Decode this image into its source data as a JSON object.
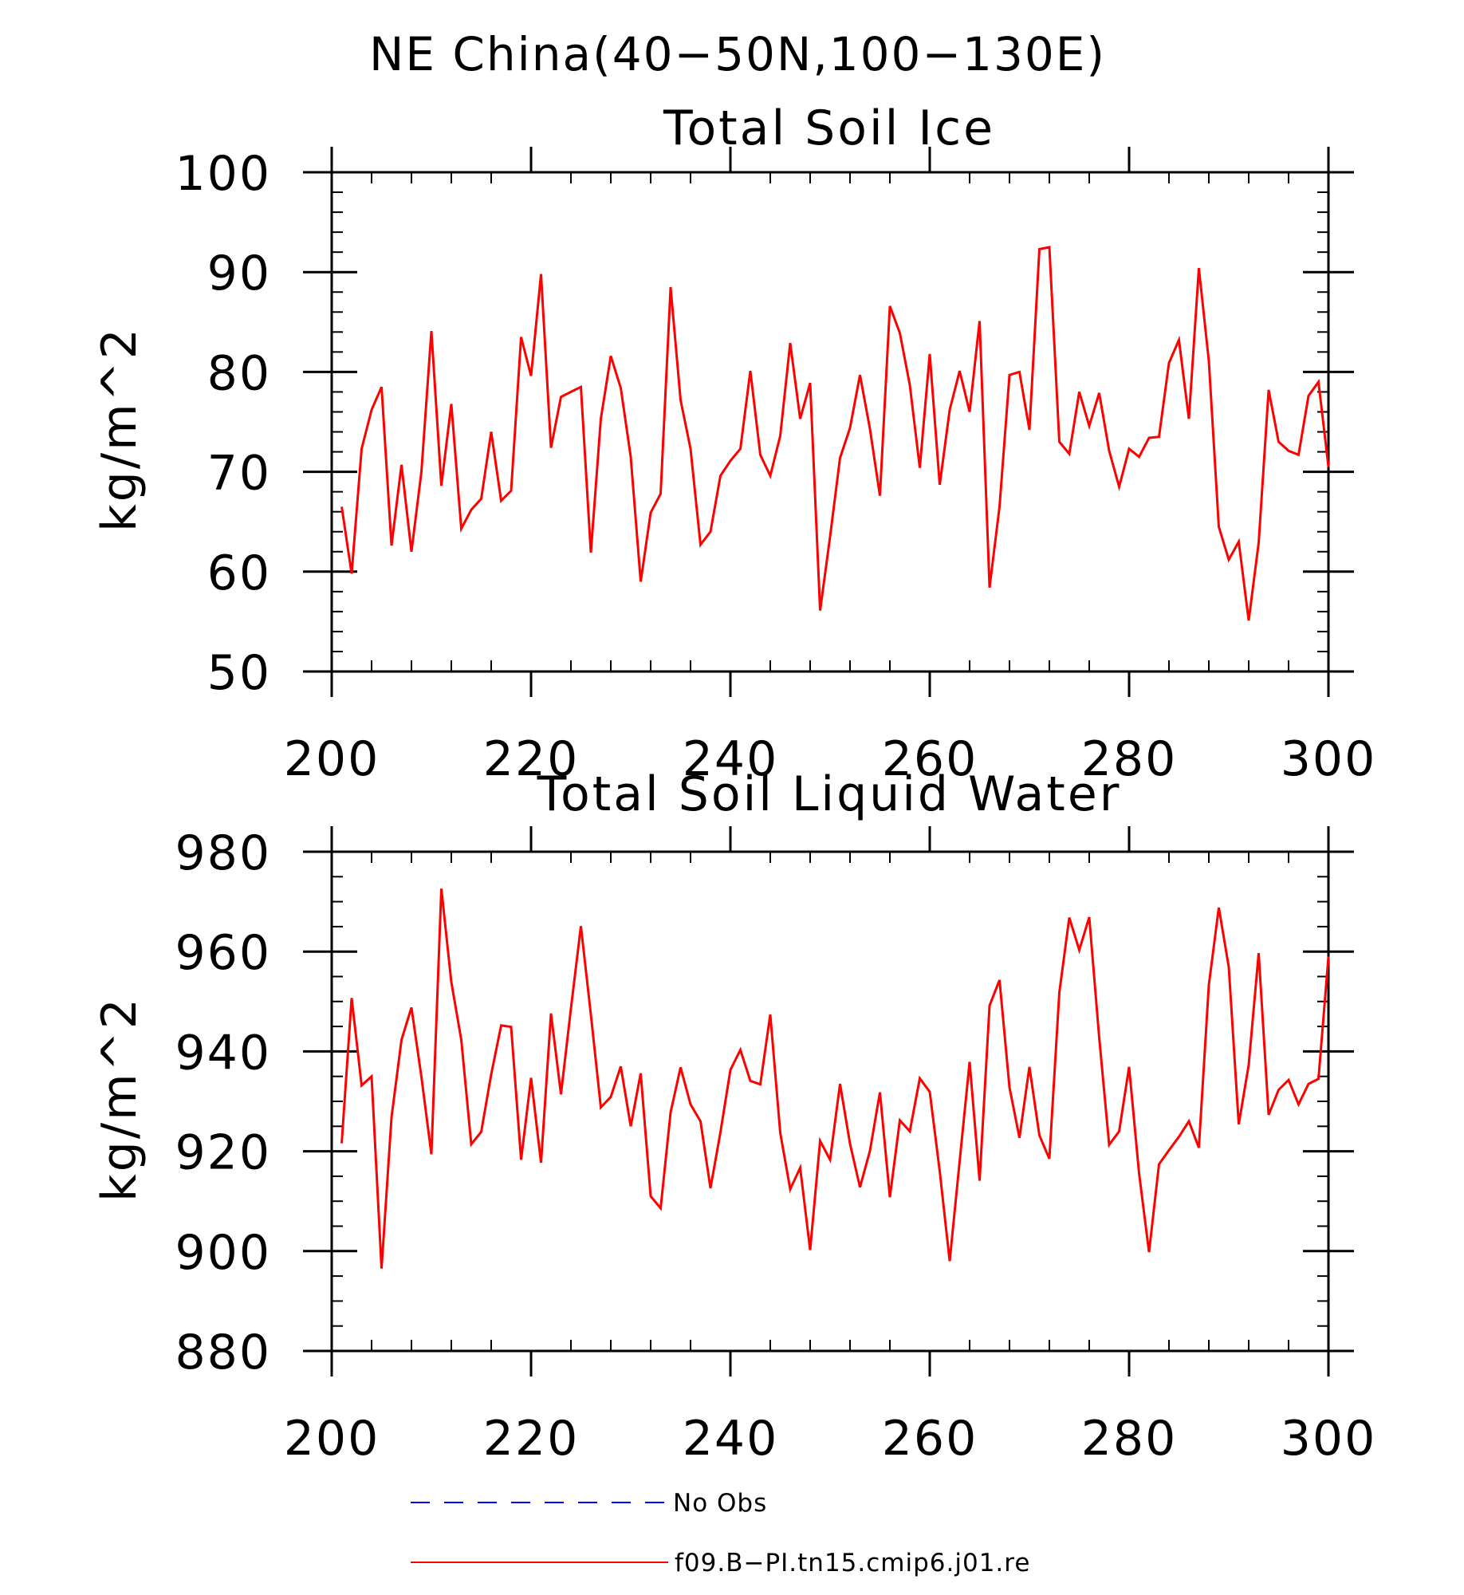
{
  "page_title": "NE China(40−50N,100−130E)",
  "colors": {
    "model": "#ff0000",
    "obs": "#0000ff",
    "axis": "#000000"
  },
  "legend": [
    {
      "label": "No Obs",
      "style": "dashed",
      "color": "#0000ff"
    },
    {
      "label": "f09.B−PI.tn15.cmip6.j01.re",
      "style": "solid",
      "color": "#ff0000"
    }
  ],
  "chart_data": [
    {
      "type": "line",
      "title": "Total Soil Ice",
      "xlabel": "",
      "ylabel": "kg/m^2",
      "xlim": [
        200,
        300
      ],
      "ylim": [
        50,
        100
      ],
      "x_ticks": [
        200,
        220,
        240,
        260,
        280,
        300
      ],
      "y_ticks": [
        50,
        60,
        70,
        80,
        90,
        100
      ],
      "x_minor_step": 4,
      "y_minor_step": 2,
      "grid": false,
      "series": [
        {
          "x_start": 201,
          "x_step": 1,
          "values": [
            66.5,
            59.8,
            72.3,
            76.2,
            78.5,
            62.6,
            70.7,
            62.0,
            70.0,
            84.1,
            68.6,
            76.8,
            64.3,
            66.2,
            67.3,
            74.0,
            67.1,
            68.1,
            83.5,
            79.6,
            89.8,
            72.4,
            77.5,
            78.0,
            78.5,
            61.9,
            75.3,
            81.6,
            78.4,
            71.5,
            59.0,
            65.9,
            67.8,
            88.5,
            77.2,
            72.3,
            62.7,
            64.0,
            69.6,
            71.1,
            72.3,
            80.1,
            71.7,
            69.6,
            73.6,
            82.9,
            75.3,
            78.9,
            56.1,
            63.5,
            71.4,
            74.4,
            79.7,
            74.3,
            67.6,
            86.6,
            83.9,
            78.7,
            70.4,
            81.8,
            68.7,
            76.2,
            80.1,
            76.0,
            85.1,
            58.4,
            66.5,
            79.7,
            80.0,
            74.2,
            92.3,
            92.5,
            73.0,
            71.8,
            78.0,
            74.6,
            77.9,
            72.1,
            68.5,
            72.3,
            71.5,
            73.4,
            73.5,
            80.9,
            83.2,
            75.3,
            90.4,
            81.1,
            64.5,
            61.2,
            63.0,
            55.1,
            62.9,
            78.2,
            73.0,
            72.1,
            71.7,
            77.6,
            79.0,
            70.5
          ]
        }
      ]
    },
    {
      "type": "line",
      "title": "Total Soil Liquid Water",
      "xlabel": "",
      "ylabel": "kg/m^2",
      "xlim": [
        200,
        300
      ],
      "ylim": [
        880,
        980
      ],
      "x_ticks": [
        200,
        220,
        240,
        260,
        280,
        300
      ],
      "y_ticks": [
        880,
        900,
        920,
        940,
        960,
        980
      ],
      "x_minor_step": 4,
      "y_minor_step": 5,
      "grid": false,
      "series": [
        {
          "x_start": 201,
          "x_step": 1,
          "values": [
            921.6,
            950.7,
            933.2,
            935.0,
            896.5,
            926.8,
            942.3,
            948.8,
            934.9,
            919.4,
            972.6,
            953.9,
            942.3,
            921.4,
            923.9,
            935.4,
            945.2,
            944.9,
            918.3,
            934.7,
            917.7,
            947.6,
            931.4,
            948.6,
            965.1,
            947.4,
            928.8,
            930.9,
            937.0,
            925.0,
            935.6,
            911.0,
            908.6,
            927.8,
            936.8,
            929.4,
            926.0,
            912.6,
            923.8,
            936.3,
            940.3,
            934.1,
            933.4,
            947.4,
            923.7,
            912.4,
            916.7,
            900.2,
            922.1,
            918.3,
            933.5,
            921.5,
            912.8,
            920.1,
            931.8,
            910.8,
            926.2,
            924.0,
            934.6,
            931.9,
            916.0,
            898.0,
            918.0,
            937.9,
            914.1,
            949.2,
            954.3,
            932.8,
            922.7,
            936.9,
            923.2,
            918.5,
            951.8,
            966.8,
            960.3,
            966.9,
            942.8,
            921.3,
            924.0,
            936.9,
            915.6,
            899.8,
            917.4,
            920.2,
            922.9,
            926.0,
            920.7,
            953.3,
            968.8,
            956.9,
            925.4,
            937.3,
            959.7,
            927.3,
            932.3,
            934.3,
            929.4,
            933.5,
            934.5,
            959.0
          ]
        }
      ]
    }
  ]
}
